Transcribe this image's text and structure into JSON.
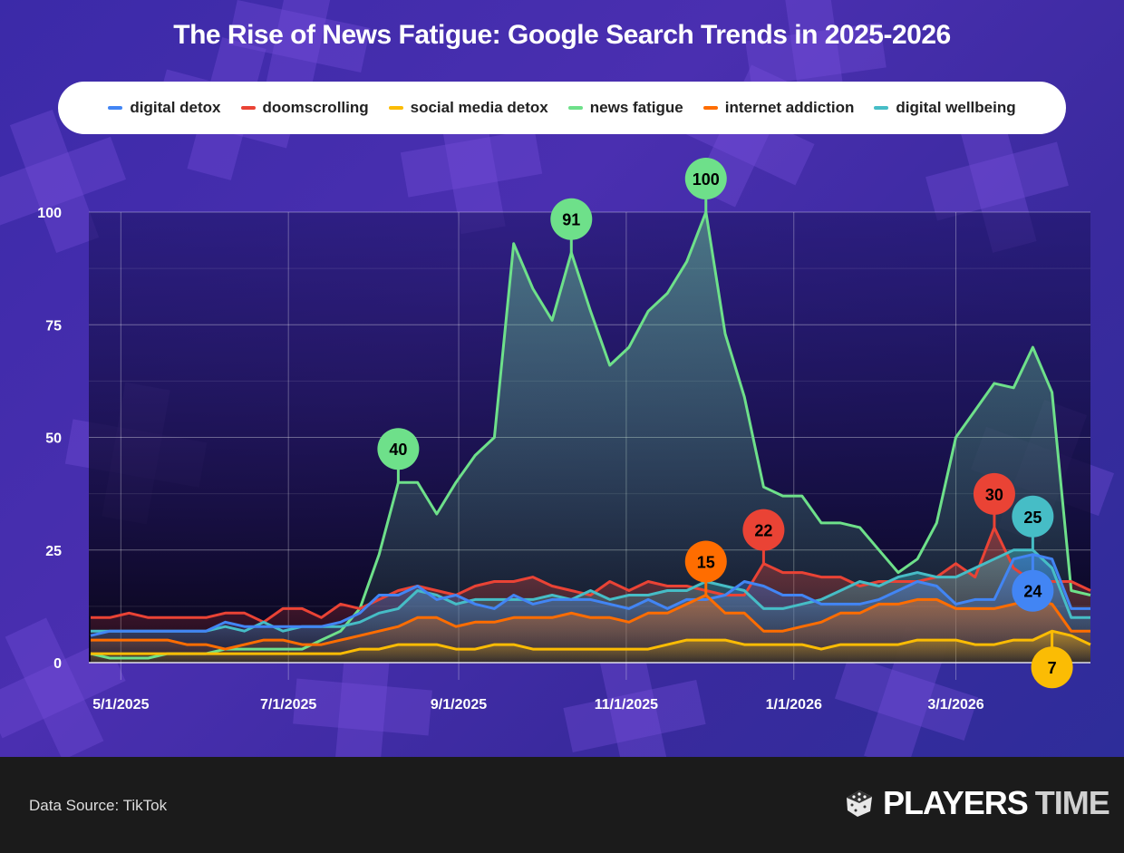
{
  "title": "The Rise of News Fatigue: Google Search Trends in 2025-2026",
  "footer": {
    "source": "Data Source: TikTok",
    "logo_text": "PLAYERS TIME",
    "logo_word1": "PLAYERS",
    "logo_word2": "TIME"
  },
  "chart_data": {
    "type": "area",
    "title": "The Rise of News Fatigue: Google Search Trends in 2025-2026",
    "xlabel": "",
    "ylabel": "",
    "ylim": [
      0,
      100
    ],
    "yticks": [
      0,
      25,
      50,
      75,
      100
    ],
    "xticks": [
      "5/1/2025",
      "7/1/2025",
      "9/1/2025",
      "11/1/2025",
      "1/1/2026",
      "3/1/2026"
    ],
    "grid": true,
    "legend_position": "top",
    "x": [
      "2025-04-20",
      "2025-04-27",
      "2025-05-04",
      "2025-05-11",
      "2025-05-18",
      "2025-05-25",
      "2025-06-01",
      "2025-06-08",
      "2025-06-15",
      "2025-06-22",
      "2025-06-29",
      "2025-07-06",
      "2025-07-13",
      "2025-07-20",
      "2025-07-27",
      "2025-08-03",
      "2025-08-10",
      "2025-08-17",
      "2025-08-24",
      "2025-08-31",
      "2025-09-07",
      "2025-09-14",
      "2025-09-21",
      "2025-09-28",
      "2025-10-05",
      "2025-10-12",
      "2025-10-19",
      "2025-10-26",
      "2025-11-02",
      "2025-11-09",
      "2025-11-16",
      "2025-11-23",
      "2025-11-30",
      "2025-12-07",
      "2025-12-14",
      "2025-12-21",
      "2025-12-28",
      "2026-01-04",
      "2026-01-11",
      "2026-01-18",
      "2026-01-25",
      "2026-02-01",
      "2026-02-08",
      "2026-02-15",
      "2026-02-22",
      "2026-03-01",
      "2026-03-08",
      "2026-03-15",
      "2026-03-22",
      "2026-03-29",
      "2026-04-05",
      "2026-04-12",
      "2026-04-19"
    ],
    "series": [
      {
        "name": "digital detox",
        "color": "#4285f4",
        "values": [
          6,
          7,
          7,
          7,
          7,
          7,
          7,
          9,
          8,
          8,
          8,
          8,
          8,
          9,
          11,
          15,
          15,
          17,
          14,
          15,
          13,
          12,
          15,
          13,
          14,
          14,
          14,
          13,
          12,
          14,
          12,
          14,
          14,
          15,
          18,
          17,
          15,
          15,
          13,
          13,
          13,
          14,
          16,
          18,
          17,
          13,
          14,
          14,
          23,
          24,
          23,
          12,
          12
        ],
        "callouts": [
          {
            "index": 49,
            "label": "24",
            "side": "below"
          }
        ]
      },
      {
        "name": "doomscrolling",
        "color": "#ea4335",
        "values": [
          10,
          10,
          11,
          10,
          10,
          10,
          10,
          11,
          11,
          9,
          12,
          12,
          10,
          13,
          12,
          14,
          16,
          17,
          16,
          15,
          17,
          18,
          18,
          19,
          17,
          16,
          15,
          18,
          16,
          18,
          17,
          17,
          16,
          15,
          15,
          22,
          20,
          20,
          19,
          19,
          17,
          18,
          18,
          18,
          19,
          22,
          19,
          30,
          21,
          18,
          18,
          18,
          16
        ],
        "callouts": [
          {
            "index": 35,
            "label": "22",
            "side": "above"
          },
          {
            "index": 47,
            "label": "30",
            "side": "above"
          }
        ]
      },
      {
        "name": "social media detox",
        "color": "#fbbc04",
        "values": [
          2,
          2,
          2,
          2,
          2,
          2,
          2,
          2,
          2,
          2,
          2,
          2,
          2,
          2,
          3,
          3,
          4,
          4,
          4,
          3,
          3,
          4,
          4,
          3,
          3,
          3,
          3,
          3,
          3,
          3,
          4,
          5,
          5,
          5,
          4,
          4,
          4,
          4,
          3,
          4,
          4,
          4,
          4,
          5,
          5,
          5,
          4,
          4,
          5,
          5,
          7,
          6,
          4
        ],
        "callouts": [
          {
            "index": 50,
            "label": "7",
            "side": "below"
          }
        ]
      },
      {
        "name": "news fatigue",
        "color": "#6ee08a",
        "values": [
          2,
          1,
          1,
          1,
          2,
          2,
          2,
          3,
          3,
          3,
          3,
          3,
          5,
          7,
          12,
          24,
          40,
          40,
          33,
          40,
          46,
          50,
          93,
          83,
          76,
          91,
          78,
          66,
          70,
          78,
          82,
          89,
          100,
          73,
          59,
          39,
          37,
          37,
          31,
          31,
          30,
          25,
          20,
          23,
          31,
          50,
          56,
          62,
          61,
          70,
          60,
          16,
          15
        ],
        "callouts": [
          {
            "index": 16,
            "label": "40",
            "side": "above"
          },
          {
            "index": 25,
            "label": "91",
            "side": "above"
          },
          {
            "index": 32,
            "label": "100",
            "side": "above"
          }
        ]
      },
      {
        "name": "internet addiction",
        "color": "#ff6d00",
        "values": [
          5,
          5,
          5,
          5,
          5,
          4,
          4,
          3,
          4,
          5,
          5,
          4,
          4,
          5,
          6,
          7,
          8,
          10,
          10,
          8,
          9,
          9,
          10,
          10,
          10,
          11,
          10,
          10,
          9,
          11,
          11,
          13,
          15,
          11,
          11,
          7,
          7,
          8,
          9,
          11,
          11,
          13,
          13,
          14,
          14,
          12,
          12,
          12,
          13,
          14,
          13,
          7,
          7
        ],
        "callouts": [
          {
            "index": 32,
            "label": "15",
            "side": "above"
          }
        ]
      },
      {
        "name": "digital wellbeing",
        "color": "#46bdc6",
        "values": [
          7,
          7,
          7,
          7,
          7,
          7,
          7,
          8,
          7,
          9,
          7,
          8,
          8,
          8,
          9,
          11,
          12,
          16,
          15,
          13,
          14,
          14,
          14,
          14,
          15,
          14,
          16,
          14,
          15,
          15,
          16,
          16,
          18,
          17,
          16,
          12,
          12,
          13,
          14,
          16,
          18,
          17,
          19,
          20,
          19,
          19,
          21,
          23,
          25,
          25,
          21,
          10,
          10
        ],
        "callouts": [
          {
            "index": 49,
            "label": "25",
            "side": "above"
          }
        ]
      }
    ]
  }
}
